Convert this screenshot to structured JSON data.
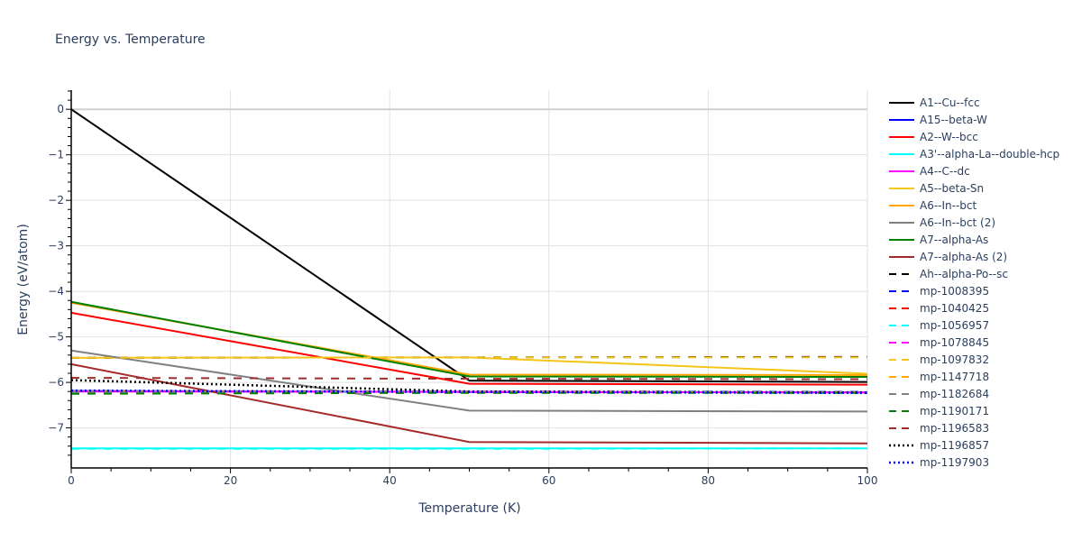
{
  "chart_data": {
    "type": "line",
    "title": "Energy vs. Temperature",
    "xlabel": "Temperature (K)",
    "ylabel": "Energy (eV/atom)",
    "xlim": [
      0,
      100
    ],
    "ylim": [
      -7.88,
      0.42
    ],
    "xticks": [
      0,
      20,
      40,
      60,
      80,
      100
    ],
    "yticks": [
      0,
      -1,
      -2,
      -3,
      -4,
      -5,
      -6,
      -7
    ],
    "ytick_labels": [
      "0",
      "−1",
      "−2",
      "−3",
      "−4",
      "−5",
      "−6",
      "−7"
    ],
    "grid": true,
    "legend_position": "right",
    "x": [
      0,
      50,
      100
    ],
    "series": [
      {
        "name": "A1--Cu--fcc",
        "color": "#000000",
        "dash": "solid",
        "values": [
          0.0,
          -5.96,
          -5.99
        ]
      },
      {
        "name": "A15--beta-W",
        "color": "#0000ff",
        "dash": "solid",
        "values": [
          -6.19,
          -6.21,
          -6.22
        ]
      },
      {
        "name": "A2--W--bcc",
        "color": "#ff0000",
        "dash": "solid",
        "values": [
          -4.47,
          -6.03,
          -6.05
        ]
      },
      {
        "name": "A3'--alpha-La--double-hcp",
        "color": "#00ffff",
        "dash": "solid",
        "values": [
          -7.45,
          -7.45,
          -7.45
        ]
      },
      {
        "name": "A4--C--dc",
        "color": "#ff00ff",
        "dash": "solid",
        "values": [
          -6.2,
          -6.21,
          -6.22
        ]
      },
      {
        "name": "A5--beta-Sn",
        "color": "#f5c518",
        "dash": "solid",
        "values": [
          -5.46,
          -5.45,
          -5.81
        ]
      },
      {
        "name": "A6--In--bct",
        "color": "#ffa500",
        "dash": "solid",
        "values": [
          -4.25,
          -5.83,
          -5.84
        ]
      },
      {
        "name": "A6--In--bct (2)",
        "color": "#808080",
        "dash": "solid",
        "values": [
          -5.3,
          -6.62,
          -6.64
        ]
      },
      {
        "name": "A7--alpha-As",
        "color": "#008000",
        "dash": "solid",
        "values": [
          -4.23,
          -5.87,
          -5.88
        ]
      },
      {
        "name": "A7--alpha-As (2)",
        "color": "#a52a2a",
        "dash": "solid",
        "values": [
          -5.6,
          -7.31,
          -7.34
        ]
      },
      {
        "name": "Ah--alpha-Po--sc",
        "color": "#000000",
        "dash": "dash",
        "values": [
          -5.46,
          -5.45,
          -5.44
        ]
      },
      {
        "name": "mp-1008395",
        "color": "#0000ff",
        "dash": "dash",
        "values": [
          -6.19,
          -6.2,
          -6.21
        ]
      },
      {
        "name": "mp-1040425",
        "color": "#ff0000",
        "dash": "dash",
        "values": [
          -6.2,
          -6.21,
          -6.22
        ]
      },
      {
        "name": "mp-1056957",
        "color": "#00ffff",
        "dash": "dash",
        "values": [
          -7.46,
          -7.46,
          -7.45
        ]
      },
      {
        "name": "mp-1078845",
        "color": "#ff00ff",
        "dash": "dash",
        "values": [
          -6.21,
          -6.21,
          -6.22
        ]
      },
      {
        "name": "mp-1097832",
        "color": "#f5c518",
        "dash": "dash",
        "values": [
          -5.46,
          -5.45,
          -5.45
        ]
      },
      {
        "name": "mp-1147718",
        "color": "#ffa500",
        "dash": "dash",
        "values": [
          -6.2,
          -6.21,
          -6.22
        ]
      },
      {
        "name": "mp-1182684",
        "color": "#808080",
        "dash": "dash",
        "values": [
          -6.21,
          -6.22,
          -6.23
        ]
      },
      {
        "name": "mp-1190171",
        "color": "#008000",
        "dash": "dash",
        "values": [
          -6.25,
          -6.23,
          -6.23
        ]
      },
      {
        "name": "mp-1196583",
        "color": "#a52a2a",
        "dash": "dash",
        "values": [
          -5.9,
          -5.92,
          -5.93
        ]
      },
      {
        "name": "mp-1196857",
        "color": "#000000",
        "dash": "dot",
        "values": [
          -5.95,
          -6.2,
          -6.22
        ]
      },
      {
        "name": "mp-1197903",
        "color": "#0000ff",
        "dash": "dot",
        "values": [
          -6.18,
          -6.21,
          -6.23
        ]
      }
    ]
  }
}
